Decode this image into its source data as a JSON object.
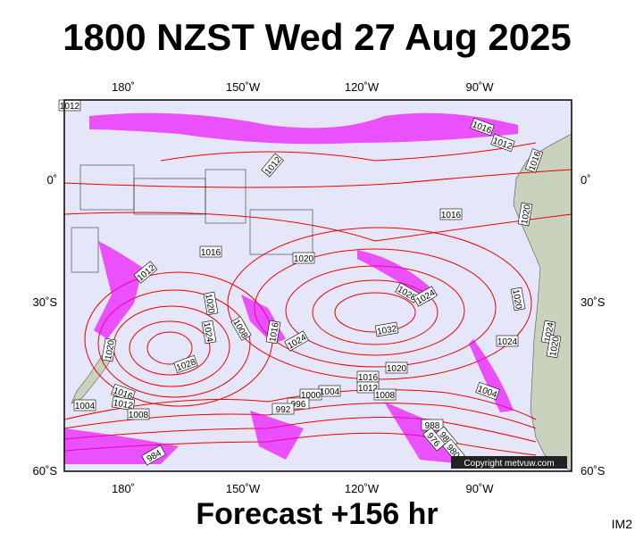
{
  "header": {
    "title": "1800 NZST Wed 27 Aug 2025"
  },
  "map": {
    "lon_labels": [
      "180˚",
      "150˚W",
      "120˚W",
      "90˚W"
    ],
    "lat_labels": [
      "0˚",
      "30˚S",
      "60˚S"
    ],
    "isobar_labels": [
      "1012",
      "1016",
      "1012",
      "1016",
      "1012",
      "1016",
      "1020",
      "1016",
      "1012",
      "1020",
      "1028",
      "1024",
      "1020",
      "1020",
      "1024",
      "1008",
      "1016",
      "1024",
      "1032",
      "1024",
      "1024",
      "1020",
      "1020",
      "1028",
      "1020",
      "1016",
      "1012",
      "1008",
      "1004",
      "1000",
      "996",
      "992",
      "1004",
      "1016",
      "1012",
      "1008",
      "1004",
      "988",
      "984",
      "980",
      "976",
      "984"
    ],
    "copyright": "Copyright metvuw.com"
  },
  "footer": {
    "forecast": "Forecast +156 hr",
    "code": "IM2"
  }
}
